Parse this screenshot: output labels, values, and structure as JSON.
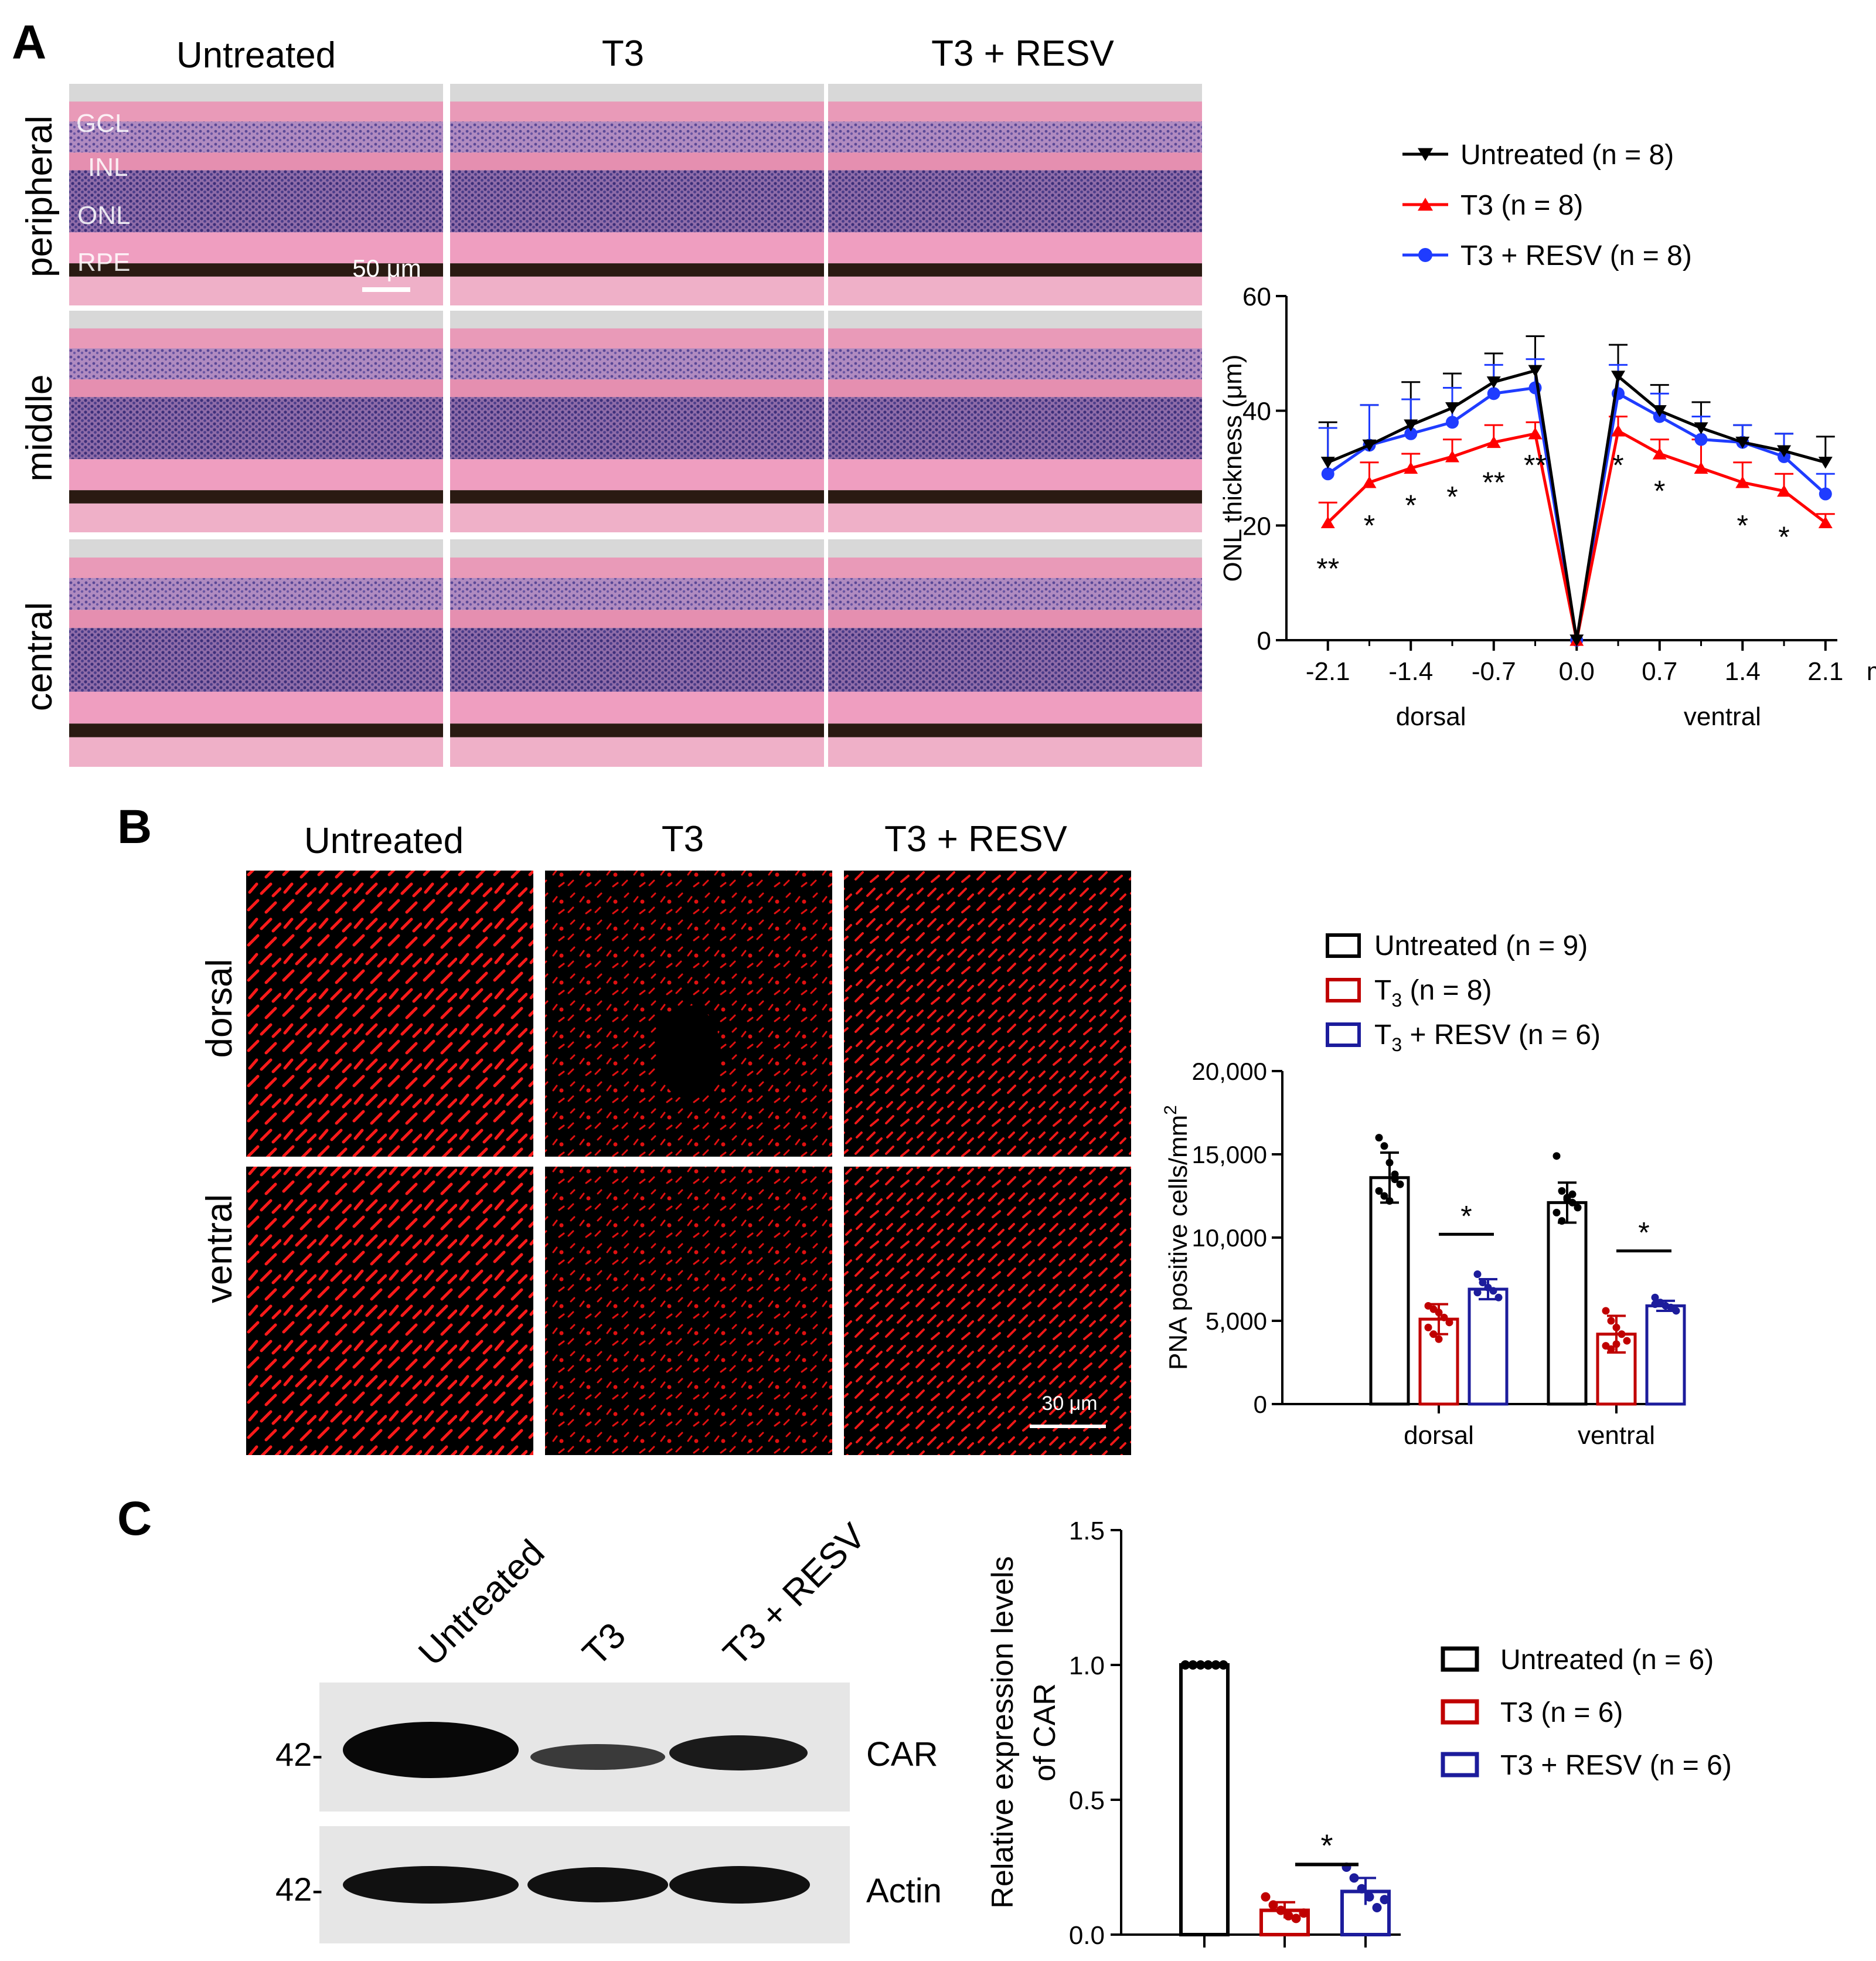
{
  "panels": {
    "A": "A",
    "B": "B",
    "C": "C"
  },
  "panel_a": {
    "columns": [
      "Untreated",
      "T3",
      "T3 + RESV"
    ],
    "rows": [
      "peripheral",
      "middle",
      "central"
    ],
    "layer_labels": [
      "GCL",
      "INL",
      "ONL",
      "RPE"
    ],
    "scale_bar": "50 μm"
  },
  "panel_b": {
    "columns": [
      "Untreated",
      "T3",
      "T3 + RESV"
    ],
    "rows": [
      "dorsal",
      "ventral"
    ],
    "scale_bar": "30 μm"
  },
  "panel_c": {
    "lanes": [
      "Untreated",
      "T3",
      "T3 + RESV"
    ],
    "bands": [
      "CAR",
      "Actin"
    ],
    "mw_markers": [
      "42-",
      "42-"
    ]
  },
  "colors": {
    "untreated": "#000000",
    "t3_line": "#ff0000",
    "resv_line": "#1f3cff",
    "t3_bar": "#c00000",
    "resv_bar": "#1c1c9c",
    "retina_pink": "#e58fb0",
    "nuclei": "#4b3d8a",
    "rpe": "#2a1a12",
    "fluor": "#ff1a1a"
  },
  "chart_data": [
    {
      "id": "onl-thickness",
      "type": "line",
      "ylabel": "ONL thickness (μm)",
      "xunit": "mm",
      "xticks": [
        "-2.1",
        "-1.4",
        "-0.7",
        "0.0",
        "0.7",
        "1.4",
        "2.1"
      ],
      "xtick_values": [
        -2.1,
        -1.4,
        -0.7,
        0.0,
        0.7,
        1.4,
        2.1
      ],
      "region_labels": [
        "dorsal",
        "ventral"
      ],
      "yticks": [
        "0",
        "20",
        "40",
        "60"
      ],
      "ylim": [
        0,
        60
      ],
      "xlim": [
        -2.45,
        2.2
      ],
      "x": [
        -2.1,
        -1.75,
        -1.4,
        -1.05,
        -0.7,
        -0.35,
        0.0,
        0.35,
        0.7,
        1.05,
        1.4,
        1.75,
        2.1
      ],
      "series": [
        {
          "name": "Untreated (n = 8)",
          "color": "#000000",
          "marker": "tri-down",
          "values": [
            31,
            34,
            37.5,
            40.5,
            45,
            47,
            0,
            46,
            40,
            37,
            34.5,
            33,
            31
          ],
          "err": [
            7,
            7,
            7.5,
            6,
            5,
            6,
            0,
            5.5,
            4.5,
            4.5,
            3,
            3,
            4.5
          ]
        },
        {
          "name": "T3 (n = 8)",
          "color": "#ff0000",
          "marker": "tri-up",
          "values": [
            20.5,
            27.5,
            30,
            32,
            34.5,
            36,
            0,
            36.5,
            32.5,
            30,
            27.5,
            26,
            20.5
          ],
          "err": [
            3.5,
            3.5,
            2.5,
            3,
            3,
            2,
            0,
            2.5,
            2.5,
            5,
            3.5,
            3,
            1.5
          ]
        },
        {
          "name": "T3 + RESV (n = 8)",
          "color": "#1f3cff",
          "marker": "circle",
          "values": [
            29,
            34,
            36,
            38,
            43,
            44,
            0,
            43,
            39,
            35,
            34.5,
            32,
            25.5
          ],
          "err": [
            8,
            7,
            6,
            6,
            5,
            5,
            0,
            5,
            4,
            4,
            3,
            4,
            3.5
          ]
        }
      ],
      "annotations": [
        {
          "text": "**",
          "x": -2.1,
          "y": 13
        },
        {
          "text": "*",
          "x": -1.75,
          "y": 20.5
        },
        {
          "text": "*",
          "x": -1.4,
          "y": 24
        },
        {
          "text": "*",
          "x": -1.05,
          "y": 25.5
        },
        {
          "text": "**",
          "x": -0.7,
          "y": 28
        },
        {
          "text": "**",
          "x": -0.35,
          "y": 31
        },
        {
          "text": "*",
          "x": 0.35,
          "y": 31
        },
        {
          "text": "*",
          "x": 0.7,
          "y": 26.5
        },
        {
          "text": "*",
          "x": 1.4,
          "y": 20.5
        },
        {
          "text": "*",
          "x": 1.75,
          "y": 18.5
        }
      ]
    },
    {
      "id": "pna-cells",
      "type": "bar",
      "ylabel": "PNA positive cells/mm",
      "ylabel_sup": "2",
      "categories": [
        "dorsal",
        "ventral"
      ],
      "yticks": [
        "0",
        "5,000",
        "10,000",
        "15,000",
        "20,000"
      ],
      "ytick_values": [
        0,
        5000,
        10000,
        15000,
        20000
      ],
      "ylim": [
        0,
        20000
      ],
      "series": [
        {
          "name": "Untreated (n = 9)",
          "label": "Untreated",
          "label_sub": "",
          "label_rest": " (n = 9)",
          "color": "#000000",
          "values": [
            13600,
            12100
          ],
          "err": [
            1500,
            1200
          ],
          "points": [
            [
              16000,
              15500,
              14500,
              13800,
              13200,
              12800,
              12500,
              12200,
              13500
            ],
            [
              14900,
              12800,
              12400,
              12100,
              11800,
              11500,
              11000,
              12300,
              12600
            ]
          ]
        },
        {
          "name": "T3 (n = 8)",
          "label": "T",
          "label_sub": "3",
          "label_rest": " (n = 8)",
          "color": "#c00000",
          "values": [
            5100,
            4200
          ],
          "err": [
            900,
            1100
          ],
          "points": [
            [
              5900,
              5700,
              5500,
              5200,
              4900,
              4600,
              4200,
              3900
            ],
            [
              5600,
              5000,
              4600,
              4200,
              3800,
              3500,
              3300,
              3600
            ]
          ]
        },
        {
          "name": "T3 + RESV (n = 6)",
          "label": "T",
          "label_sub": "3",
          "label_rest": " + RESV (n = 6)",
          "color": "#1c1c9c",
          "values": [
            6900,
            5900
          ],
          "err": [
            600,
            300
          ],
          "points": [
            [
              7800,
              7300,
              7000,
              6800,
              6400,
              6700
            ],
            [
              6400,
              6100,
              5900,
              5800,
              5600,
              6000
            ]
          ]
        }
      ],
      "significance": [
        {
          "text": "*",
          "category": "dorsal",
          "y": 10200
        },
        {
          "text": "*",
          "category": "ventral",
          "y": 9200
        }
      ]
    },
    {
      "id": "car-expression",
      "type": "bar",
      "ylabel": [
        "Relative expression levels",
        "of CAR"
      ],
      "yticks": [
        "0.0",
        "0.5",
        "1.0",
        "1.5"
      ],
      "ytick_values": [
        0,
        0.5,
        1.0,
        1.5
      ],
      "ylim": [
        0,
        1.5
      ],
      "series": [
        {
          "name": "Untreated (n = 6)",
          "color": "#000000",
          "value": 1.0,
          "err": 0.0,
          "points": [
            1.0,
            1.0,
            1.0,
            1.0,
            1.0,
            1.0
          ]
        },
        {
          "name": "T3 (n = 6)",
          "color": "#c00000",
          "value": 0.09,
          "err": 0.03,
          "points": [
            0.14,
            0.11,
            0.09,
            0.07,
            0.06,
            0.08
          ]
        },
        {
          "name": "T3 + RESV (n = 6)",
          "color": "#1c1c9c",
          "value": 0.16,
          "err": 0.05,
          "points": [
            0.25,
            0.21,
            0.17,
            0.14,
            0.1,
            0.13
          ]
        }
      ],
      "significance": [
        {
          "text": "*",
          "y": 0.26
        }
      ]
    }
  ]
}
